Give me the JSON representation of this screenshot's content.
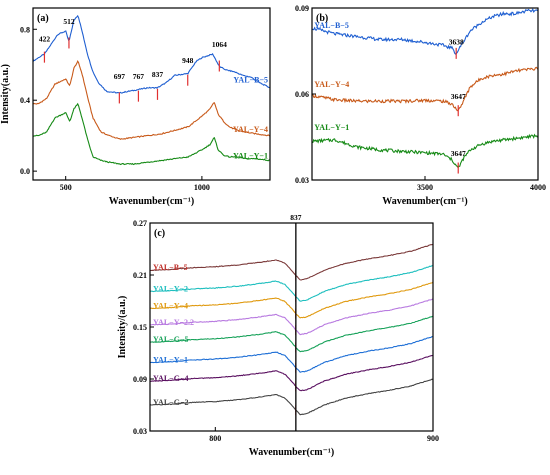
{
  "chart_data": [
    {
      "type": "line",
      "panel_label": "(a)",
      "xlabel": "Wavenumber(cm⁻¹)",
      "ylabel": "Intensity(a.u.)",
      "xlim": [
        380,
        1250
      ],
      "ylim": [
        -0.05,
        0.92
      ],
      "xticks": [
        500,
        1000
      ],
      "yticks": [
        {
          "v": 0.0,
          "label": "0.0"
        },
        {
          "v": 0.4,
          "label": "0.4"
        },
        {
          "v": 0.8,
          "label": "0.8"
        }
      ],
      "peak_labels": [
        {
          "x": 422,
          "y": 0.73,
          "text": "422"
        },
        {
          "x": 512,
          "y": 0.83,
          "text": "512"
        },
        {
          "x": 697,
          "y": 0.52,
          "text": "697"
        },
        {
          "x": 767,
          "y": 0.52,
          "text": "767"
        },
        {
          "x": 837,
          "y": 0.53,
          "text": "837"
        },
        {
          "x": 948,
          "y": 0.61,
          "text": "948"
        },
        {
          "x": 1064,
          "y": 0.7,
          "text": "1064"
        }
      ],
      "markers": [
        {
          "x": 422,
          "y": 0.64
        },
        {
          "x": 512,
          "y": 0.72
        },
        {
          "x": 697,
          "y": 0.41
        },
        {
          "x": 767,
          "y": 0.42
        },
        {
          "x": 837,
          "y": 0.43
        },
        {
          "x": 948,
          "y": 0.51
        },
        {
          "x": 1064,
          "y": 0.59
        }
      ],
      "series": [
        {
          "name": "YAL−B−5",
          "color": "#1f5fd1",
          "label_x": 1160,
          "label_y": 0.5,
          "x": [
            380,
            400,
            422,
            440,
            470,
            500,
            512,
            530,
            545,
            560,
            580,
            600,
            620,
            650,
            697,
            730,
            767,
            800,
            837,
            870,
            900,
            948,
            980,
            1000,
            1020,
            1040,
            1064,
            1090,
            1120,
            1150,
            1180,
            1210,
            1250
          ],
          "y": [
            0.62,
            0.64,
            0.66,
            0.7,
            0.77,
            0.79,
            0.73,
            0.85,
            0.88,
            0.79,
            0.66,
            0.56,
            0.5,
            0.45,
            0.44,
            0.45,
            0.46,
            0.47,
            0.47,
            0.5,
            0.54,
            0.55,
            0.62,
            0.64,
            0.65,
            0.66,
            0.59,
            0.57,
            0.56,
            0.54,
            0.53,
            0.5,
            0.47
          ]
        },
        {
          "name": "YAL−Y−4",
          "color": "#c85a1a",
          "label_x": 1160,
          "label_y": 0.22,
          "x": [
            380,
            400,
            430,
            460,
            500,
            515,
            530,
            545,
            560,
            580,
            600,
            630,
            660,
            700,
            750,
            800,
            850,
            900,
            950,
            1000,
            1030,
            1045,
            1060,
            1080,
            1100,
            1130,
            1160,
            1200,
            1250
          ],
          "y": [
            0.38,
            0.38,
            0.41,
            0.49,
            0.52,
            0.48,
            0.58,
            0.62,
            0.55,
            0.42,
            0.3,
            0.22,
            0.2,
            0.18,
            0.19,
            0.2,
            0.21,
            0.23,
            0.25,
            0.31,
            0.35,
            0.39,
            0.32,
            0.28,
            0.25,
            0.23,
            0.22,
            0.21,
            0.2
          ]
        },
        {
          "name": "YAL−Y−1",
          "color": "#168a16",
          "label_x": 1160,
          "label_y": 0.07,
          "x": [
            380,
            400,
            430,
            460,
            500,
            515,
            530,
            545,
            560,
            580,
            600,
            630,
            660,
            700,
            750,
            800,
            850,
            900,
            950,
            1000,
            1030,
            1045,
            1060,
            1080,
            1100,
            1130,
            1160,
            1200,
            1250
          ],
          "y": [
            0.2,
            0.2,
            0.22,
            0.3,
            0.33,
            0.28,
            0.35,
            0.38,
            0.3,
            0.18,
            0.08,
            0.06,
            0.05,
            0.04,
            0.04,
            0.05,
            0.06,
            0.07,
            0.08,
            0.12,
            0.15,
            0.19,
            0.12,
            0.09,
            0.08,
            0.08,
            0.07,
            0.07,
            0.06
          ]
        }
      ]
    },
    {
      "type": "line",
      "panel_label": "(b)",
      "xlabel": "Wavenumber(cm⁻¹)",
      "ylabel": "",
      "xlim": [
        3000,
        4000
      ],
      "ylim": [
        0.03,
        0.09
      ],
      "xticks": [
        3500,
        4000
      ],
      "yticks": [
        {
          "v": 0.03,
          "label": "0.03"
        },
        {
          "v": 0.06,
          "label": "0.06"
        },
        {
          "v": 0.09,
          "label": "0.09"
        }
      ],
      "peak_labels": [
        {
          "x": 3638,
          "y": 0.0772,
          "text": "3638"
        },
        {
          "x": 3647,
          "y": 0.0583,
          "text": "3647"
        },
        {
          "x": 3647,
          "y": 0.0383,
          "text": "3647"
        }
      ],
      "markers": [
        {
          "x": 3638,
          "y": 0.074
        },
        {
          "x": 3647,
          "y": 0.054
        },
        {
          "x": 3647,
          "y": 0.034
        }
      ],
      "series": [
        {
          "name": "YAL−B−5",
          "color": "#1f5fd1",
          "label_x": 3010,
          "label_y": 0.083,
          "x": [
            3000,
            3100,
            3200,
            3300,
            3400,
            3500,
            3580,
            3620,
            3638,
            3660,
            3700,
            3750,
            3800,
            3850,
            3900,
            3950,
            4000
          ],
          "y": [
            0.083,
            0.081,
            0.08,
            0.079,
            0.079,
            0.078,
            0.077,
            0.076,
            0.074,
            0.077,
            0.082,
            0.085,
            0.087,
            0.088,
            0.088,
            0.089,
            0.089
          ]
        },
        {
          "name": "YAL−Y−4",
          "color": "#c85a1a",
          "label_x": 3010,
          "label_y": 0.0625,
          "x": [
            3000,
            3100,
            3200,
            3300,
            3400,
            3500,
            3580,
            3620,
            3647,
            3670,
            3700,
            3750,
            3800,
            3850,
            3900,
            3950,
            4000
          ],
          "y": [
            0.0595,
            0.058,
            0.0575,
            0.0575,
            0.0575,
            0.0578,
            0.0575,
            0.0565,
            0.054,
            0.0575,
            0.0625,
            0.0655,
            0.0665,
            0.067,
            0.068,
            0.0685,
            0.069
          ]
        },
        {
          "name": "YAL−Y−1",
          "color": "#168a16",
          "label_x": 3010,
          "label_y": 0.0475,
          "x": [
            3000,
            3100,
            3200,
            3300,
            3400,
            3500,
            3580,
            3620,
            3647,
            3670,
            3700,
            3750,
            3800,
            3850,
            3900,
            3950,
            4000
          ],
          "y": [
            0.0435,
            0.044,
            0.0415,
            0.0405,
            0.04,
            0.0395,
            0.039,
            0.037,
            0.034,
            0.0375,
            0.0405,
            0.0425,
            0.0435,
            0.044,
            0.0445,
            0.045,
            0.0455
          ]
        }
      ]
    },
    {
      "type": "line",
      "panel_label": "(c)",
      "xlabel": "Wavenumber(cm⁻¹)",
      "ylabel": "Intensity/(a.u.)",
      "xlim": [
        770,
        900
      ],
      "ylim": [
        0.03,
        0.27
      ],
      "xticks": [
        800,
        900
      ],
      "yticks": [
        {
          "v": 0.03,
          "label": "0.03"
        },
        {
          "v": 0.09,
          "label": "0.09"
        },
        {
          "v": 0.15,
          "label": "0.15"
        },
        {
          "v": 0.21,
          "label": "0.21"
        },
        {
          "v": 0.27,
          "label": "0.27"
        }
      ],
      "vline": {
        "x": 837,
        "label": "837"
      },
      "series": [
        {
          "name": "YAL−B−5",
          "color": "#7b3a3a",
          "label_y": 0.2155,
          "offset": 0.2155,
          "label_color": "#c0302a"
        },
        {
          "name": "YAL−Y−2",
          "color": "#1fbfbf",
          "label_y": 0.191,
          "offset": 0.191
        },
        {
          "name": "YAL−Y−4",
          "color": "#e09a10",
          "label_y": 0.1715,
          "offset": 0.1715
        },
        {
          "name": "YAL−Y−2.2",
          "color": "#b87ae0",
          "label_y": 0.1525,
          "offset": 0.1525
        },
        {
          "name": "YAL−G−5",
          "color": "#18a25a",
          "label_y": 0.1325,
          "offset": 0.1325
        },
        {
          "name": "YAL−Y−1",
          "color": "#1e6fd6",
          "label_y": 0.109,
          "offset": 0.109
        },
        {
          "name": "YAL−G−4",
          "color": "#5a1060",
          "label_y": 0.0875,
          "offset": 0.0875
        },
        {
          "name": "YAL−G−2",
          "color": "#444444",
          "label_y": 0.06,
          "offset": 0.06
        }
      ],
      "profile_x": [
        770,
        780,
        790,
        800,
        810,
        820,
        828,
        832,
        835,
        837,
        839,
        842,
        846,
        850,
        860,
        870,
        880,
        890,
        900
      ],
      "profile_y": [
        0,
        0.001,
        0.003,
        0.004,
        0.006,
        0.009,
        0.012,
        0.008,
        0.0,
        -0.006,
        -0.011,
        -0.01,
        -0.005,
        0.0,
        0.008,
        0.013,
        0.017,
        0.022,
        0.03
      ],
      "marker_x": 837
    }
  ]
}
